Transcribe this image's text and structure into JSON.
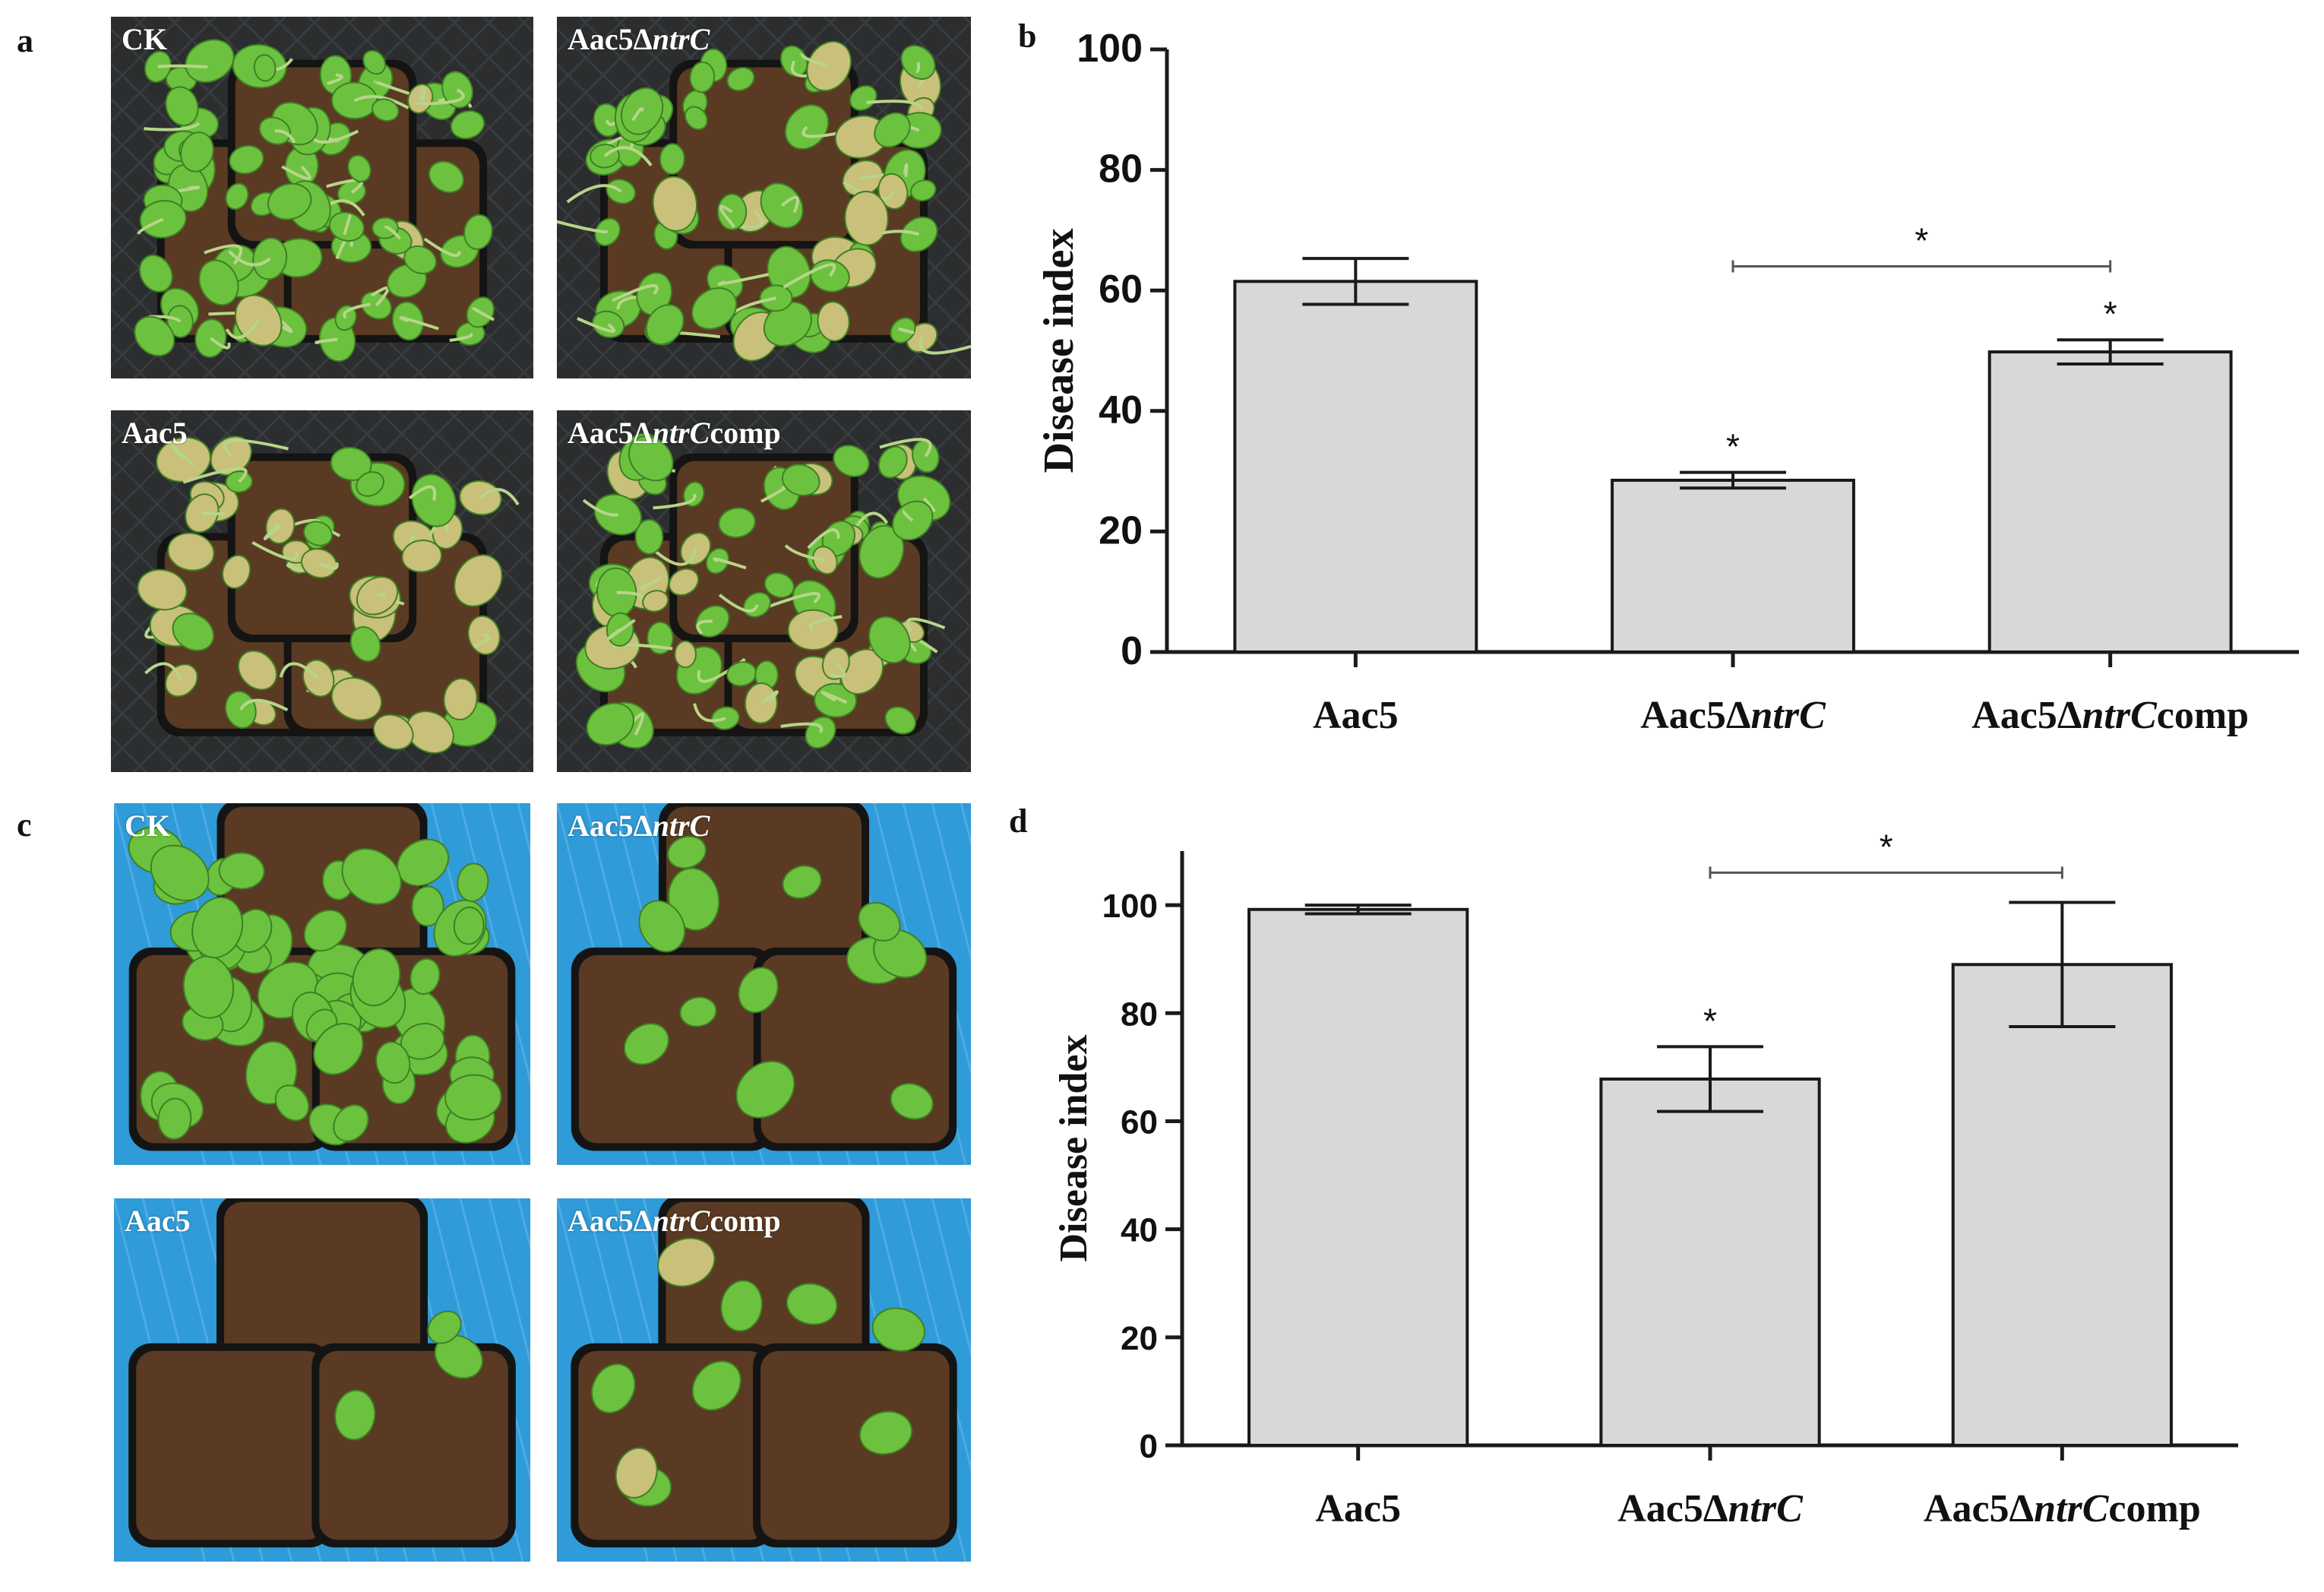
{
  "panels": {
    "a": {
      "letter": "a",
      "photos": [
        {
          "label": "CK",
          "italic": "",
          "suffix": ""
        },
        {
          "label": "Aac5Δ",
          "italic": "ntrC",
          "suffix": ""
        },
        {
          "label": "Aac5",
          "italic": "",
          "suffix": ""
        },
        {
          "label": "Aac5Δ",
          "italic": "ntrC",
          "suffix": "comp"
        }
      ]
    },
    "b": {
      "letter": "b"
    },
    "c": {
      "letter": "c",
      "photos": [
        {
          "label": "CK",
          "italic": "",
          "suffix": ""
        },
        {
          "label": "Aac5Δ",
          "italic": "ntrC",
          "suffix": ""
        },
        {
          "label": "Aac5",
          "italic": "",
          "suffix": ""
        },
        {
          "label": "Aac5Δ",
          "italic": "ntrC",
          "suffix": "comp"
        }
      ]
    },
    "d": {
      "letter": "d"
    }
  },
  "colors": {
    "bar_fill": "#d8d8d8",
    "bar_stroke": "#1a1a1a",
    "panel_a_bg": "#2b2d2e",
    "panel_c_bg": "#2f9bd8",
    "foliage_healthy": "#6cc23e",
    "foliage_diseased": "#c9c07a",
    "soil": "#5a3a22"
  },
  "chart_data": [
    {
      "panel": "b",
      "type": "bar",
      "categories": [
        {
          "prefix": "Aac5",
          "italic": "",
          "suffix": ""
        },
        {
          "prefix": "Aac5Δ",
          "italic": "ntrC",
          "suffix": ""
        },
        {
          "prefix": "Aac5Δ",
          "italic": "ntrC",
          "suffix": "comp"
        }
      ],
      "values": [
        61.5,
        28.5,
        49.8
      ],
      "errors": [
        3.8,
        1.3,
        2.0
      ],
      "markers": [
        "",
        "*",
        "*"
      ],
      "bracket": {
        "from": 1,
        "to": 2,
        "y": 64,
        "label": "*"
      },
      "ylabel": "Disease index",
      "ylim": [
        0,
        100
      ],
      "yticks": [
        0,
        20,
        40,
        60,
        80,
        100
      ]
    },
    {
      "panel": "d",
      "type": "bar",
      "categories": [
        {
          "prefix": "Aac5",
          "italic": "",
          "suffix": ""
        },
        {
          "prefix": "Aac5Δ",
          "italic": "ntrC",
          "suffix": ""
        },
        {
          "prefix": "Aac5Δ",
          "italic": "ntrC",
          "suffix": "comp"
        }
      ],
      "values": [
        99.2,
        67.8,
        89.0
      ],
      "errors": [
        0.8,
        6.0,
        11.5
      ],
      "markers": [
        "",
        "*",
        ""
      ],
      "bracket": {
        "from": 1,
        "to": 2,
        "y": 106,
        "label": "*"
      },
      "ylabel": "Disease index",
      "ylim": [
        0,
        110
      ],
      "yticks": [
        0,
        20,
        40,
        60,
        80,
        100
      ]
    }
  ]
}
